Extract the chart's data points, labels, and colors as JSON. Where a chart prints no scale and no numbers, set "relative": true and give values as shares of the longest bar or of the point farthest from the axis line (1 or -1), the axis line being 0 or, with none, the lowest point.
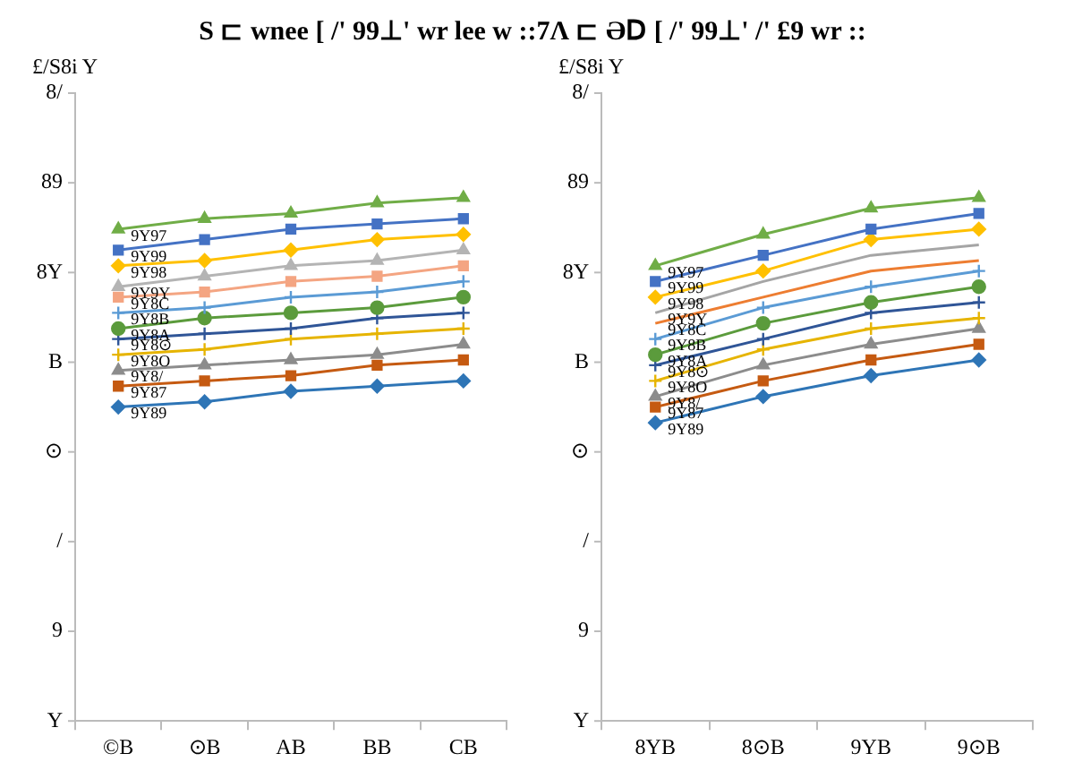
{
  "chart_data": [
    {
      "type": "line",
      "title": "S ⊏ wnee [ /' 99⊥' wr lee w ::7Λ ⊏ ƏⅮ [ /' 99⊥' /' £9 wr ::",
      "ylabel": "£/S8i Y",
      "categories": [
        "©B",
        "⊙B",
        "AB",
        "BB",
        "CB"
      ],
      "relative": true,
      "annotations": [
        "Y",
        "9",
        "/",
        "⊙",
        "B",
        "8Y",
        "89",
        "8/"
      ],
      "grid": false,
      "legend": false,
      "series": [
        {
          "name": "9Y97",
          "color": "#70ad47",
          "marker": "triangle",
          "values": [
            0.94,
            0.96,
            0.97,
            0.99,
            1
          ]
        },
        {
          "name": "9Y99",
          "color": "#4472c4",
          "marker": "square",
          "values": [
            0.9,
            0.92,
            0.94,
            0.95,
            0.96
          ]
        },
        {
          "name": "9Y98",
          "color": "#ffc000",
          "marker": "diamond",
          "values": [
            0.87,
            0.88,
            0.9,
            0.92,
            0.93
          ]
        },
        {
          "name": "9Y9Y",
          "color": "#b4b4b4",
          "marker": "triangle",
          "values": [
            0.83,
            0.85,
            0.87,
            0.88,
            0.9
          ]
        },
        {
          "name": "9Y8C",
          "color": "#f4a582",
          "marker": "square",
          "values": [
            0.81,
            0.82,
            0.84,
            0.85,
            0.87
          ]
        },
        {
          "name": "9Y8B",
          "color": "#5b9bd5",
          "marker": "cross",
          "values": [
            0.78,
            0.79,
            0.81,
            0.82,
            0.84
          ]
        },
        {
          "name": "9Y8A",
          "color": "#5b9b3c",
          "marker": "circle",
          "values": [
            0.75,
            0.77,
            0.78,
            0.79,
            0.81
          ]
        },
        {
          "name": "9Y8⊙",
          "color": "#2f5597",
          "marker": "cross",
          "values": [
            0.73,
            0.74,
            0.75,
            0.77,
            0.78
          ]
        },
        {
          "name": "9Y8O",
          "color": "#e6b400",
          "marker": "cross",
          "values": [
            0.7,
            0.71,
            0.73,
            0.74,
            0.75
          ]
        },
        {
          "name": "9Y8/",
          "color": "#8c8c8c",
          "marker": "triangle",
          "values": [
            0.67,
            0.68,
            0.69,
            0.7,
            0.72
          ]
        },
        {
          "name": "9Y87",
          "color": "#c55a11",
          "marker": "square",
          "values": [
            0.64,
            0.65,
            0.66,
            0.68,
            0.69
          ]
        },
        {
          "name": "9Y89",
          "color": "#2e75b6",
          "marker": "diamond",
          "values": [
            0.6,
            0.61,
            0.63,
            0.64,
            0.65
          ]
        }
      ]
    },
    {
      "type": "line",
      "ylabel": "£/S8i Y",
      "categories": [
        "8YB",
        "8⊙B",
        "9YB",
        "9⊙B"
      ],
      "relative": true,
      "annotations": [
        "Y",
        "9",
        "/",
        "⊙",
        "B",
        "8Y",
        "89",
        "8/"
      ],
      "grid": false,
      "legend": false,
      "series": [
        {
          "name": "9Y97",
          "color": "#70ad47",
          "marker": "triangle",
          "values": [
            0.87,
            0.93,
            0.98,
            1
          ]
        },
        {
          "name": "9Y99",
          "color": "#4472c4",
          "marker": "square",
          "values": [
            0.84,
            0.89,
            0.94,
            0.97
          ]
        },
        {
          "name": "9Y98",
          "color": "#ffc000",
          "marker": "diamond",
          "values": [
            0.81,
            0.86,
            0.92,
            0.94
          ]
        },
        {
          "name": "9Y9Y",
          "color": "#a5a5a5",
          "marker": "none",
          "values": [
            0.78,
            0.84,
            0.89,
            0.91
          ]
        },
        {
          "name": "9Y8C",
          "color": "#ed7d31",
          "marker": "none",
          "values": [
            0.76,
            0.81,
            0.86,
            0.88
          ]
        },
        {
          "name": "9Y8B",
          "color": "#5b9bd5",
          "marker": "cross",
          "values": [
            0.73,
            0.79,
            0.83,
            0.86
          ]
        },
        {
          "name": "9Y8A",
          "color": "#5b9b3c",
          "marker": "circle",
          "values": [
            0.7,
            0.76,
            0.8,
            0.83
          ]
        },
        {
          "name": "9Y8⊙",
          "color": "#2f5597",
          "marker": "cross",
          "values": [
            0.68,
            0.73,
            0.78,
            0.8
          ]
        },
        {
          "name": "9Y8O",
          "color": "#e6b400",
          "marker": "cross",
          "values": [
            0.65,
            0.71,
            0.75,
            0.77
          ]
        },
        {
          "name": "9Y8/",
          "color": "#8c8c8c",
          "marker": "triangle",
          "values": [
            0.62,
            0.68,
            0.72,
            0.75
          ]
        },
        {
          "name": "9Y87",
          "color": "#c55a11",
          "marker": "square",
          "values": [
            0.6,
            0.65,
            0.69,
            0.72
          ]
        },
        {
          "name": "9Y89",
          "color": "#2e75b6",
          "marker": "diamond",
          "values": [
            0.57,
            0.62,
            0.66,
            0.69
          ]
        }
      ]
    }
  ]
}
